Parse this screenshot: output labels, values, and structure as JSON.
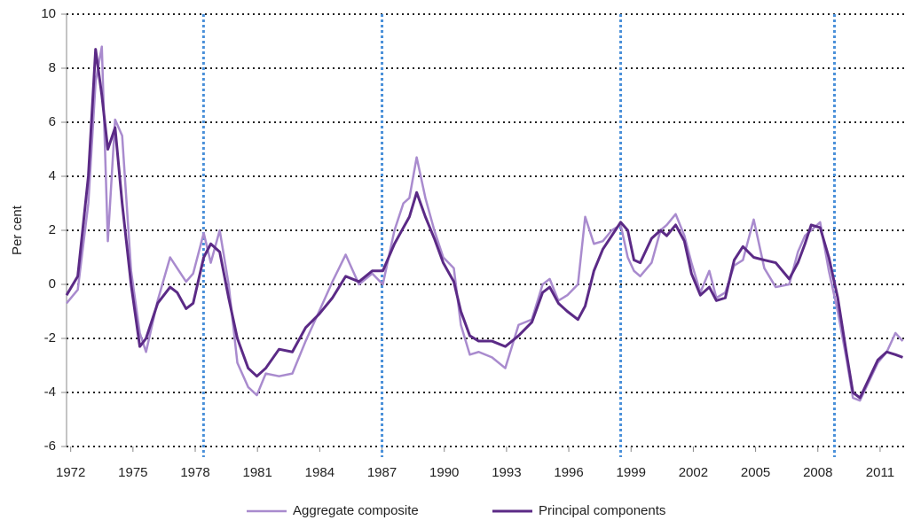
{
  "chart_data": {
    "type": "line",
    "ylabel": "Per cent",
    "x": [
      1971.8,
      1972.34,
      1972.85,
      1973.2,
      1973.5,
      1973.79,
      1974.14,
      1974.48,
      1974.91,
      1975.33,
      1975.63,
      1976.19,
      1976.79,
      1977.13,
      1977.56,
      1977.9,
      1978.41,
      1978.75,
      1979.18,
      1979.61,
      1980.03,
      1980.55,
      1980.97,
      1981.4,
      1982.04,
      1982.68,
      1983.32,
      1983.97,
      1984.61,
      1985.25,
      1985.89,
      1986.53,
      1987.04,
      1987.6,
      1988.03,
      1988.32,
      1988.67,
      1989.09,
      1989.52,
      1989.95,
      1990.46,
      1990.8,
      1991.23,
      1991.66,
      1992.3,
      1992.94,
      1993.58,
      1994.22,
      1994.74,
      1995.08,
      1995.5,
      1995.93,
      1996.44,
      1996.79,
      1997.21,
      1997.64,
      1998.07,
      1998.5,
      1998.84,
      1999.14,
      1999.44,
      1999.99,
      2000.42,
      2000.72,
      2001.15,
      2001.57,
      2001.91,
      2002.34,
      2002.77,
      2003.11,
      2003.54,
      2003.97,
      2004.39,
      2004.91,
      2005.42,
      2005.97,
      2006.62,
      2007.04,
      2007.38,
      2007.68,
      2008.11,
      2008.53,
      2008.96,
      2009.39,
      2009.69,
      2010.03,
      2010.46,
      2010.89,
      2011.32,
      2011.74,
      2012.09
    ],
    "series": [
      {
        "name": "Aggregate composite",
        "color": "#a98bce",
        "width": 2.5,
        "values": [
          -0.7,
          -0.2,
          3,
          7.5,
          8.8,
          1.6,
          6.1,
          5.5,
          0.5,
          -1.8,
          -2.5,
          -0.6,
          1.0,
          0.6,
          0.1,
          0.4,
          1.9,
          0.8,
          2.0,
          0,
          -2.9,
          -3.8,
          -4.1,
          -3.3,
          -3.4,
          -3.3,
          -2.1,
          -1.0,
          0.1,
          1.1,
          0,
          0.4,
          0,
          2.0,
          3.0,
          3.2,
          4.7,
          3.2,
          2.0,
          1.0,
          0.6,
          -1.5,
          -2.6,
          -2.5,
          -2.7,
          -3.1,
          -1.5,
          -1.3,
          0,
          0.2,
          -0.6,
          -0.4,
          0,
          2.5,
          1.5,
          1.6,
          2.0,
          2.2,
          1.0,
          0.5,
          0.3,
          0.8,
          2.0,
          2.2,
          2.6,
          1.8,
          0.8,
          -0.3,
          0.5,
          -0.5,
          -0.3,
          0.7,
          0.9,
          2.4,
          0.6,
          -0.1,
          0.0,
          1.2,
          1.8,
          2.0,
          2.3,
          0.5,
          -1.0,
          -2.8,
          -4.2,
          -4.3,
          -3.6,
          -2.9,
          -2.5,
          -1.8,
          -2.1
        ]
      },
      {
        "name": "Principal components",
        "color": "#5b2a86",
        "width": 3,
        "values": [
          -0.4,
          0.3,
          4,
          8.7,
          7,
          5,
          5.8,
          3,
          0,
          -2.3,
          -2,
          -0.7,
          -0.1,
          -0.3,
          -0.9,
          -0.7,
          1.0,
          1.5,
          1.2,
          -0.5,
          -2,
          -3.1,
          -3.4,
          -3.1,
          -2.4,
          -2.5,
          -1.6,
          -1.1,
          -0.5,
          0.3,
          0.1,
          0.5,
          0.5,
          1.5,
          2.1,
          2.5,
          3.4,
          2.5,
          1.7,
          0.8,
          0.1,
          -1,
          -1.9,
          -2.1,
          -2.1,
          -2.3,
          -1.9,
          -1.4,
          -0.3,
          -0.1,
          -0.7,
          -1,
          -1.3,
          -0.8,
          0.5,
          1.3,
          1.8,
          2.3,
          2.0,
          0.9,
          0.8,
          1.7,
          2.0,
          1.8,
          2.2,
          1.6,
          0.4,
          -0.4,
          -0.1,
          -0.6,
          -0.5,
          0.9,
          1.4,
          1.0,
          0.9,
          0.8,
          0.2,
          0.8,
          1.5,
          2.2,
          2.1,
          1.0,
          -0.5,
          -2.6,
          -4.0,
          -4.2,
          -3.5,
          -2.8,
          -2.5,
          -2.6,
          -2.7
        ]
      }
    ],
    "xlim": [
      1971.8,
      2012.2
    ],
    "xticks": [
      1972,
      1975,
      1978,
      1981,
      1984,
      1987,
      1990,
      1993,
      1996,
      1999,
      2002,
      2005,
      2008,
      2011
    ],
    "ylim": [
      -6,
      10
    ],
    "yticks": [
      10,
      8,
      6,
      4,
      2,
      0,
      -2,
      -4,
      -6
    ],
    "grid": true,
    "vlines": [
      1978.4,
      1987.0,
      1998.5,
      2008.8
    ],
    "vline_color": "#4a90d9",
    "legend": "bottom"
  }
}
